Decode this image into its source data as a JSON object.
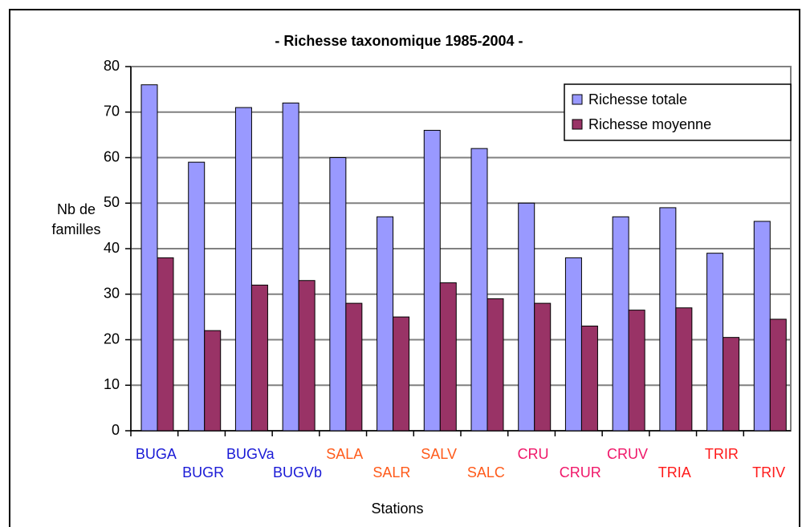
{
  "chart_data": {
    "type": "bar",
    "title": "- Richesse taxonomique 1985-2004 -",
    "ylabel": [
      "Nb de",
      "familles"
    ],
    "xlabel": "Stations",
    "categories": [
      "BUGA",
      "BUGR",
      "BUGVa",
      "BUGVb",
      "SALA",
      "SALR",
      "SALV",
      "SALC",
      "CRU",
      "CRUR",
      "CRUV",
      "TRIA",
      "TRIR",
      "TRIV"
    ],
    "category_colors": [
      "#1a1ad6",
      "#1a1ad6",
      "#1a1ad6",
      "#1a1ad6",
      "#ff5a1a",
      "#ff5a1a",
      "#ff5a1a",
      "#ff5a1a",
      "#f0186a",
      "#f0186a",
      "#f0186a",
      "#ff1a1a",
      "#ff1a1a",
      "#ff1a1a"
    ],
    "series": [
      {
        "name": "Richesse totale",
        "color": "#9999ff",
        "values": [
          76,
          59,
          71,
          72,
          60,
          47,
          66,
          62,
          50,
          38,
          47,
          49,
          39,
          46
        ]
      },
      {
        "name": "Richesse moyenne",
        "color": "#993366",
        "values": [
          38,
          22,
          32,
          33,
          28,
          25,
          32.5,
          29,
          28,
          23,
          26.5,
          27,
          20.5,
          24.5
        ]
      }
    ],
    "ylim": [
      0,
      80
    ],
    "yticks": [
      0,
      10,
      20,
      30,
      40,
      50,
      60,
      70,
      80
    ],
    "grid": true,
    "legend": "top-right"
  }
}
